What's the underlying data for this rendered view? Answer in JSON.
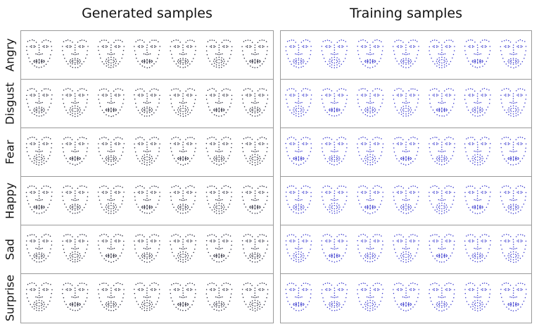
{
  "titles": {
    "generated": "Generated samples",
    "training": "Training samples"
  },
  "rows": [
    "Angry",
    "Disgust",
    "Fear",
    "Happy",
    "Sad",
    "Surprise"
  ],
  "samples_per_row": 7,
  "colors": {
    "generated": "#222233",
    "training": "#3333cc",
    "border": "#9a9a9a"
  }
}
